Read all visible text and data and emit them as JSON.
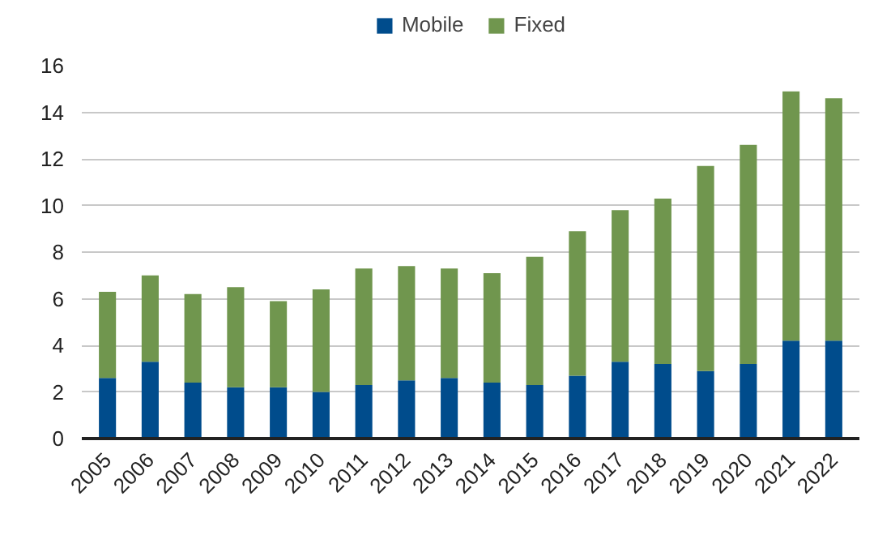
{
  "chart_data": {
    "type": "bar",
    "stacked": true,
    "categories": [
      "2005",
      "2006",
      "2007",
      "2008",
      "2009",
      "2010",
      "2011",
      "2012",
      "2013",
      "2014",
      "2015",
      "2016",
      "2017",
      "2018",
      "2019",
      "2020",
      "2021",
      "2022"
    ],
    "series": [
      {
        "name": "Mobile",
        "color": "#004c8c",
        "values": [
          2.6,
          3.3,
          2.4,
          2.2,
          2.2,
          2.0,
          2.3,
          2.5,
          2.6,
          2.4,
          2.3,
          2.7,
          3.3,
          3.2,
          2.9,
          3.2,
          4.2,
          4.2
        ]
      },
      {
        "name": "Fixed",
        "color": "#70964e",
        "values": [
          3.7,
          3.7,
          3.8,
          4.3,
          3.7,
          4.4,
          5.0,
          4.9,
          4.7,
          4.7,
          5.5,
          6.2,
          6.5,
          7.1,
          8.8,
          9.4,
          10.7,
          10.4
        ]
      }
    ],
    "ylim": [
      0,
      16
    ],
    "yticks": [
      0,
      2,
      4,
      6,
      8,
      10,
      12,
      14,
      16
    ],
    "grid": "y",
    "legend": "top"
  }
}
